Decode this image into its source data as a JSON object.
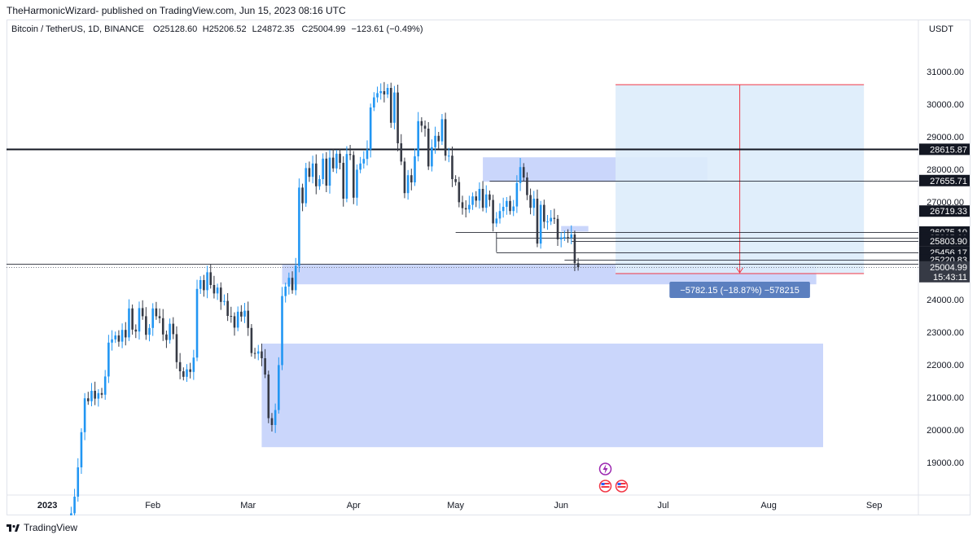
{
  "header": {
    "publish_line": "TheHarmonicWizard- published on TradingView.com, Jun 15, 2023 08:16 UTC"
  },
  "footer": {
    "brand": "TradingView"
  },
  "chart_data": {
    "type": "candlestick",
    "symbol_line": "Bitcoin / TetherUS, 1D, BINANCE",
    "ohlc_readout": {
      "o_label": "O",
      "o": "25128.60",
      "h_label": "H",
      "h": "25206.52",
      "l_label": "L",
      "l": "24872.35",
      "c_label": "C",
      "c": "25004.99",
      "change": "−123.61 (−0.49%)"
    },
    "currency": "USDT",
    "ylim": [
      18000,
      31700
    ],
    "y_ticks": [
      "19000.00",
      "20000.00",
      "21000.00",
      "22000.00",
      "23000.00",
      "24000.00",
      "25000.00",
      "26000.00",
      "27000.00",
      "28000.00",
      "29000.00",
      "30000.00",
      "31000.00"
    ],
    "x_ticks": [
      {
        "label": "2023",
        "date": "2023-01-01",
        "bold": true
      },
      {
        "label": "Feb",
        "date": "2023-02-01"
      },
      {
        "label": "Mar",
        "date": "2023-03-01"
      },
      {
        "label": "Apr",
        "date": "2023-04-01"
      },
      {
        "label": "May",
        "date": "2023-05-01"
      },
      {
        "label": "Jun",
        "date": "2023-06-01"
      },
      {
        "label": "Jul",
        "date": "2023-07-01"
      },
      {
        "label": "Aug",
        "date": "2023-08-01"
      },
      {
        "label": "Sep",
        "date": "2023-09-01"
      }
    ],
    "xlim": [
      "2022-12-20",
      "2023-09-14"
    ],
    "candle_start_date": "2023-01-01",
    "close": [
      16620,
      16680,
      16850,
      16840,
      16950,
      17120,
      17180,
      17440,
      17950,
      18850,
      19930,
      20970,
      20880,
      21200,
      20960,
      21130,
      21080,
      21640,
      22680,
      22780,
      22900,
      22710,
      23070,
      22840,
      23730,
      23080,
      23020,
      23740,
      23490,
      22920,
      23130,
      23730,
      23490,
      23430,
      22930,
      22760,
      23260,
      22940,
      22080,
      21800,
      21630,
      21860,
      21780,
      22220,
      24330,
      24600,
      24290,
      24840,
      24450,
      24190,
      24370,
      23930,
      23960,
      23500,
      23490,
      23140,
      23630,
      23480,
      23660,
      23130,
      22360,
      22340,
      22410,
      22200,
      21700,
      20360,
      20150,
      20610,
      21990,
      24110,
      24400,
      24670,
      24290,
      25040,
      27440,
      26960,
      28040,
      27770,
      28180,
      27480,
      27700,
      28330,
      27500,
      28360,
      28030,
      28480,
      28200,
      27100,
      28470,
      28440,
      27130,
      27990,
      28180,
      28320,
      28610,
      29900,
      30210,
      30340,
      30400,
      30300,
      30500,
      29430,
      30360,
      28800,
      28240,
      27270,
      27820,
      27600,
      28400,
      29480,
      29340,
      29250,
      28090,
      28680,
      29030,
      28860,
      29540,
      28420,
      28420,
      27700,
      27610,
      26990,
      26810,
      26770,
      26910,
      27170,
      27040,
      27400,
      26820,
      27230,
      27060,
      26340,
      26490,
      26720,
      26850,
      27030,
      26720,
      26860,
      27580,
      28070,
      27750,
      27210,
      26820,
      27100,
      25720,
      26910,
      26390,
      26400,
      26510,
      26480,
      25850,
      25910,
      25920,
      25900,
      26000,
      25120,
      25000
    ],
    "zones": [
      {
        "name": "upper-supply-zone",
        "y_top": 28370,
        "y_bottom": 27620,
        "x_start": "2023-05-09",
        "x_end": "2023-07-14"
      },
      {
        "name": "small-zone",
        "y_top": 26260,
        "y_bottom": 26090,
        "x_start": "2023-06-01",
        "x_end": "2023-06-09"
      },
      {
        "name": "current-demand-zone",
        "y_top": 25080,
        "y_bottom": 24470,
        "x_start": "2023-03-11",
        "x_end": "2023-08-15"
      },
      {
        "name": "lower-demand-zone",
        "y_top": 22650,
        "y_bottom": 19470,
        "x_start": "2023-03-05",
        "x_end": "2023-08-17"
      }
    ],
    "levels": [
      {
        "value": 28615.87,
        "label": "28615.87",
        "style": "thick",
        "x_start": "2022-12-20"
      },
      {
        "value": 27655.71,
        "label": "27655.71",
        "style": "thin",
        "x_start": "2023-05-11"
      },
      {
        "value": 26719.33,
        "label": "26719.33",
        "style": "none",
        "x_start": "2023-05-01"
      },
      {
        "value": 26075.1,
        "label": "26075.10",
        "style": "thin",
        "x_start": "2023-05-01"
      },
      {
        "value": 25895.61,
        "label": "25895.61",
        "style": "thin",
        "x_start": "2023-05-13"
      },
      {
        "value": 25803.9,
        "label": "25803.90",
        "style": "thin",
        "x_start": "2023-06-04"
      },
      {
        "value": 25456.17,
        "label": "25456.17",
        "style": "thin",
        "x_start": "2023-05-13"
      },
      {
        "value": 25220.83,
        "label": "25220.83",
        "style": "thin",
        "x_start": "2023-06-02"
      },
      {
        "value": 25100.0,
        "label": "",
        "style": "thin",
        "x_start": "2022-12-20"
      }
    ],
    "last_price": {
      "value": 25004.99,
      "label": "25004.99",
      "countdown": "15:43:11"
    },
    "measure": {
      "x_start": "2023-06-17",
      "x_end": "2023-08-29",
      "y_top": 30600,
      "y_bottom": 24800,
      "label": "−5782.15 (−18.87%) −578215"
    },
    "colors": {
      "up": "#2196f3",
      "down": "#363a45",
      "zone": "#c7d4fb",
      "measure_fill": "#ddecfb",
      "measure_line": "#f23645",
      "level": "#131722",
      "accent": "#2962ff"
    },
    "icons": [
      "lightning-event-icon",
      "us-flag-event-icon",
      "us-flag-event-icon"
    ]
  }
}
